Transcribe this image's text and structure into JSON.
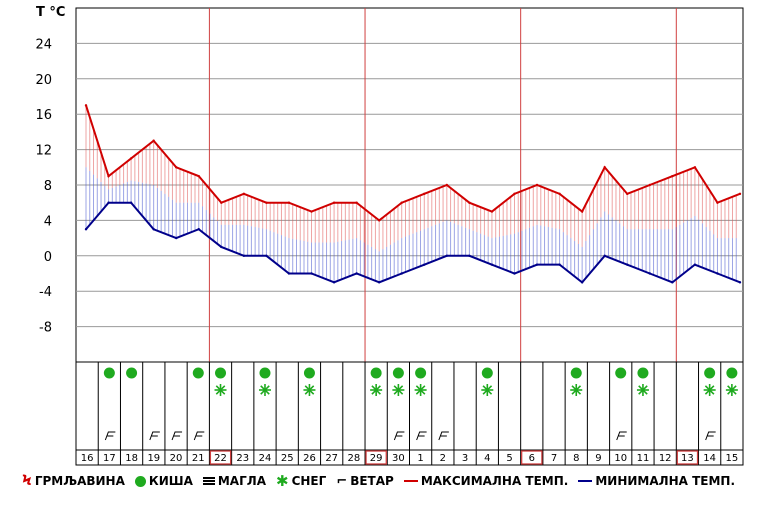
{
  "unit_label": "T °C",
  "chart_data": {
    "type": "area",
    "yticks": [
      24,
      20,
      16,
      12,
      8,
      4,
      0,
      -4,
      -8
    ],
    "ylim": [
      -12,
      28
    ],
    "days": [
      "16",
      "17",
      "18",
      "19",
      "20",
      "21",
      "22",
      "23",
      "24",
      "25",
      "26",
      "27",
      "28",
      "29",
      "30",
      "1",
      "2",
      "3",
      "4",
      "5",
      "6",
      "7",
      "8",
      "9",
      "10",
      "11",
      "12",
      "13",
      "14",
      "15"
    ],
    "highlighted_days": [
      "22",
      "29",
      "6",
      "13"
    ],
    "week_separators_before": [
      "22",
      "29",
      "6",
      "13"
    ],
    "series": [
      {
        "name": "МАКСИМАЛНА ТЕМП.",
        "color": "#d00000",
        "values": [
          17,
          9,
          11,
          13,
          10,
          9,
          6,
          7,
          6,
          6,
          5,
          6,
          6,
          4,
          6,
          7,
          8,
          6,
          5,
          7,
          8,
          7,
          5,
          10,
          7,
          8,
          9,
          10,
          6,
          7
        ]
      },
      {
        "name": "МИНИМАЛНА ТЕМП.",
        "color": "#00008b",
        "values": [
          3,
          6,
          6,
          3,
          2,
          3,
          1,
          0,
          0,
          -2,
          -2,
          -3,
          -2,
          -3,
          -2,
          -1,
          0,
          0,
          -1,
          -2,
          -1,
          -1,
          -3,
          0,
          -1,
          -2,
          -3,
          -1,
          -2,
          -3
        ]
      }
    ],
    "rain_days": [
      "17",
      "18",
      "21",
      "22",
      "24",
      "26",
      "29",
      "30",
      "1",
      "4",
      "8",
      "10",
      "11",
      "14",
      "15"
    ],
    "snow_days": [
      "22",
      "24",
      "26",
      "29",
      "30",
      "1",
      "4",
      "8",
      "11",
      "14",
      "15"
    ],
    "wind_days": [
      "17",
      "19",
      "20",
      "21",
      "30",
      "1",
      "2",
      "10",
      "14"
    ]
  },
  "legend": [
    {
      "name": "storm",
      "symbol": "storm-icon",
      "label": "ГРМЉАВИНА"
    },
    {
      "name": "rain",
      "symbol": "rain-dot-icon",
      "label": "КИША"
    },
    {
      "name": "fog",
      "symbol": "fog-icon",
      "label": "МАГЛА"
    },
    {
      "name": "snow",
      "symbol": "snowflake-icon",
      "label": "СНЕГ"
    },
    {
      "name": "wind",
      "symbol": "wind-icon",
      "label": "ВЕТАР"
    },
    {
      "name": "max",
      "symbol": "max-line-icon",
      "label": "МАКСИМАЛНА ТЕМП."
    },
    {
      "name": "min",
      "symbol": "min-line-icon",
      "label": "МИНИМАЛНА ТЕМП."
    }
  ]
}
